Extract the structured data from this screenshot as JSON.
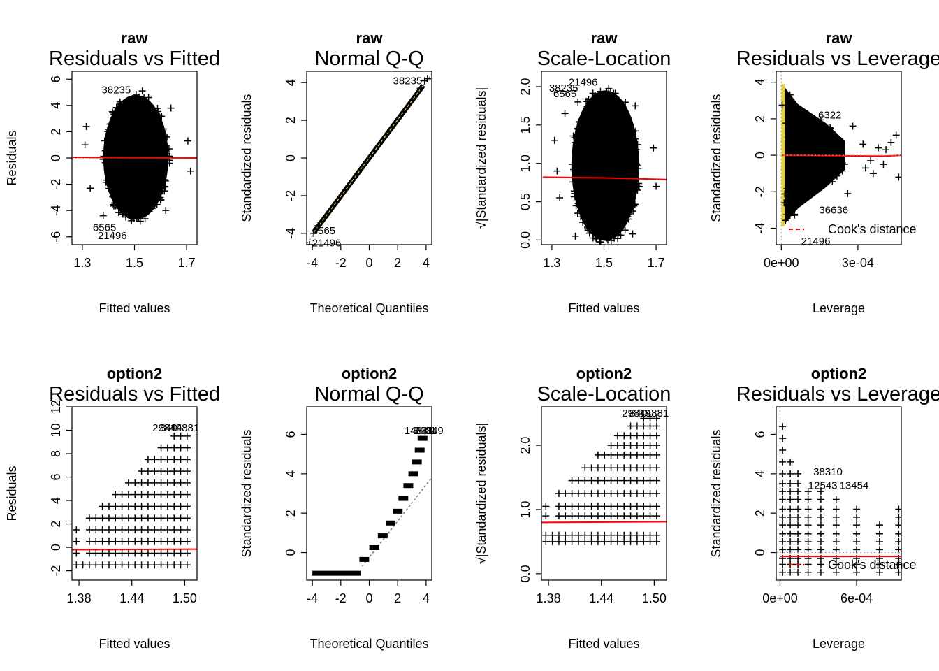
{
  "chart_data": [
    {
      "id": "p1",
      "type": "scatter",
      "dataset": "raw",
      "title": "Residuals vs Fitted",
      "xlabel": "Fitted values",
      "ylabel": "Residuals",
      "xlim": [
        1.26,
        1.74
      ],
      "ylim": [
        -6.6,
        6.6
      ],
      "xticks": [
        1.3,
        1.5,
        1.7
      ],
      "xtick_labels": [
        "1.3",
        "1.5",
        "1.7"
      ],
      "yticks": [
        -6,
        -4,
        -2,
        0,
        2,
        4,
        6
      ],
      "ytick_labels": [
        "-6",
        "-4",
        "-2",
        "0",
        "2",
        "4",
        "6"
      ],
      "cloud": {
        "shape": "ellipse",
        "cx": 1.505,
        "cy": 0.05,
        "rx": 0.125,
        "ry": 4.75
      },
      "points": [
        [
          1.31,
          1.0
        ],
        [
          1.315,
          2.4
        ],
        [
          1.33,
          -2.3
        ],
        [
          1.705,
          1.3
        ],
        [
          1.715,
          -1.0
        ],
        [
          1.64,
          3.8
        ],
        [
          1.38,
          -4.4
        ],
        [
          1.62,
          -4.0
        ],
        [
          1.53,
          5.1
        ]
      ],
      "labels": [
        {
          "text": "38235",
          "x": 1.43,
          "y": 5.2
        },
        {
          "text": "6565",
          "x": 1.385,
          "y": -5.3
        },
        {
          "text": "21496",
          "x": 1.415,
          "y": -5.9
        }
      ],
      "fit_line": [
        [
          1.265,
          0.05
        ],
        [
          1.5,
          0.02
        ],
        [
          1.74,
          0.0
        ]
      ],
      "zero_line": 0
    },
    {
      "id": "p2",
      "type": "scatter",
      "dataset": "raw",
      "title": "Normal Q-Q",
      "xlabel": "Theoretical Quantiles",
      "ylabel": "Standardized residuals",
      "xlim": [
        -4.4,
        4.4
      ],
      "ylim": [
        -4.6,
        4.6
      ],
      "xticks": [
        -4,
        -2,
        0,
        2,
        4
      ],
      "xtick_labels": [
        "-4",
        "-2",
        "0",
        "2",
        "4"
      ],
      "yticks": [
        -4,
        -2,
        0,
        2,
        4
      ],
      "ytick_labels": [
        "-4",
        "-2",
        "0",
        "2",
        "4"
      ],
      "qq_line": [
        [
          -4.4,
          -4.55
        ],
        [
          4.4,
          4.45
        ]
      ],
      "qq_points": [
        [
          -4.2,
          -4.6
        ],
        [
          -3.9,
          -4.0
        ],
        [
          -3.6,
          -3.6
        ],
        [
          3.6,
          3.7
        ],
        [
          3.9,
          4.1
        ],
        [
          4.1,
          4.2
        ]
      ],
      "labels": [
        {
          "text": "38235",
          "x": 2.7,
          "y": 4.1
        },
        {
          "text": "6565",
          "x": -3.2,
          "y": -3.85
        },
        {
          "text": "21496",
          "x": -3.0,
          "y": -4.5
        }
      ]
    },
    {
      "id": "p3",
      "type": "scatter",
      "dataset": "raw",
      "title": "Scale-Location",
      "xlabel": "Fitted values",
      "ylabel": "√|Standardized residuals|",
      "xlim": [
        1.26,
        1.74
      ],
      "ylim": [
        -0.06,
        2.2
      ],
      "xticks": [
        1.3,
        1.5,
        1.7
      ],
      "xtick_labels": [
        "1.3",
        "1.5",
        "1.7"
      ],
      "yticks": [
        0.0,
        0.5,
        1.0,
        1.5,
        2.0
      ],
      "ytick_labels": [
        "0.0",
        "0.5",
        "1.0",
        "1.5",
        "2.0"
      ],
      "cloud": {
        "shape": "ellipse",
        "cx": 1.505,
        "cy": 0.97,
        "rx": 0.13,
        "ry": 0.98
      },
      "points": [
        [
          1.31,
          1.3
        ],
        [
          1.32,
          0.9
        ],
        [
          1.33,
          0.55
        ],
        [
          1.7,
          0.7
        ],
        [
          1.69,
          1.2
        ],
        [
          1.62,
          1.75
        ],
        [
          1.4,
          1.8
        ],
        [
          1.39,
          0.05
        ],
        [
          1.61,
          0.08
        ],
        [
          1.35,
          1.65
        ]
      ],
      "labels": [
        {
          "text": "38235",
          "x": 1.345,
          "y": 1.98
        },
        {
          "text": "6565",
          "x": 1.35,
          "y": 1.91
        },
        {
          "text": "21496",
          "x": 1.42,
          "y": 2.06
        }
      ],
      "fit_line": [
        [
          1.265,
          0.82
        ],
        [
          1.5,
          0.81
        ],
        [
          1.74,
          0.79
        ]
      ]
    },
    {
      "id": "p4",
      "type": "scatter",
      "dataset": "raw",
      "title": "Residuals vs Leverage",
      "xlabel": "Leverage",
      "ylabel": "Standardized residuals",
      "xlim": [
        -2e-05,
        0.00047
      ],
      "ylim": [
        -4.9,
        4.6
      ],
      "xticks": [
        0,
        0.0003
      ],
      "xtick_labels": [
        "0e+00",
        "3e-04"
      ],
      "yticks": [
        -4,
        -2,
        0,
        2,
        4
      ],
      "ytick_labels": [
        "-4",
        "-2",
        "0",
        "2",
        "4"
      ],
      "cloud": {
        "shape": "leverage_fan",
        "x0": 3e-06,
        "x1": 0.00025,
        "top": 3.9,
        "bottom": -3.9
      },
      "points": [
        [
          0.00032,
          0.6
        ],
        [
          0.00035,
          -0.3
        ],
        [
          0.00038,
          0.4
        ],
        [
          0.0004,
          -0.5
        ],
        [
          0.00043,
          0.7
        ],
        [
          0.00045,
          1.1
        ],
        [
          0.00046,
          -1.2
        ],
        [
          0.00036,
          -1.0
        ],
        [
          0.00041,
          0.3
        ],
        [
          0.00033,
          -0.7
        ],
        [
          0.00028,
          1.6
        ],
        [
          0.00026,
          -2.1
        ]
      ],
      "labels": [
        {
          "text": "6322",
          "x": 0.00019,
          "y": 2.2
        },
        {
          "text": "36636",
          "x": 0.000205,
          "y": -3.0
        },
        {
          "text": "21496",
          "x": 0.000135,
          "y": -4.7
        }
      ],
      "fit_line": [
        [
          3e-06,
          0.0
        ],
        [
          0.0004,
          -0.05
        ],
        [
          0.00047,
          0.0
        ]
      ],
      "legend": "Cook's distance"
    },
    {
      "id": "p5",
      "type": "scatter",
      "dataset": "option2",
      "title": "Residuals vs Fitted",
      "xlabel": "Fitted values",
      "ylabel": "Residuals",
      "xlim": [
        1.372,
        1.514
      ],
      "ylim": [
        -2.8,
        12.0
      ],
      "xticks": [
        1.38,
        1.44,
        1.5
      ],
      "xtick_labels": [
        "1.38",
        "1.44",
        "1.50"
      ],
      "yticks": [
        -2,
        0,
        2,
        4,
        6,
        8,
        10,
        12
      ],
      "ytick_labels": [
        "-2",
        "0",
        "2",
        "4",
        "6",
        "8",
        "10",
        "12"
      ],
      "grid": {
        "x_start": 1.377,
        "x_step": 0.0074,
        "y_offsets": [
          -1.5,
          -0.5,
          0.5,
          1.5,
          2.5,
          3.5,
          4.5,
          5.5,
          6.5,
          7.5,
          8.5,
          9.5
        ]
      },
      "labels": [
        {
          "text": "29849",
          "x": 1.48,
          "y": 10.2
        },
        {
          "text": "8401",
          "x": 1.485,
          "y": 10.2
        },
        {
          "text": "14881",
          "x": 1.5,
          "y": 10.2
        }
      ],
      "fit_line": [
        [
          1.372,
          -0.2
        ],
        [
          1.514,
          -0.15
        ]
      ]
    },
    {
      "id": "p6",
      "type": "scatter",
      "dataset": "option2",
      "title": "Normal Q-Q",
      "xlabel": "Theoretical Quantiles",
      "ylabel": "Standardized residuals",
      "xlim": [
        -4.4,
        4.4
      ],
      "ylim": [
        -1.4,
        7.4
      ],
      "xticks": [
        -4,
        -2,
        0,
        2,
        4
      ],
      "xtick_labels": [
        "-4",
        "-2",
        "0",
        "2",
        "4"
      ],
      "yticks": [
        0,
        2,
        4,
        6
      ],
      "ytick_labels": [
        "0",
        "2",
        "4",
        "6"
      ],
      "qq_line": [
        [
          -0.5,
          -0.7
        ],
        [
          4.4,
          3.8
        ]
      ],
      "labels": [
        {
          "text": "14881",
          "x": 3.5,
          "y": 6.2
        },
        {
          "text": "8401",
          "x": 3.9,
          "y": 6.2
        },
        {
          "text": "29849",
          "x": 4.2,
          "y": 6.2
        }
      ]
    },
    {
      "id": "p7",
      "type": "scatter",
      "dataset": "option2",
      "title": "Scale-Location",
      "xlabel": "Fitted values",
      "ylabel": "√|Standardized residuals|",
      "xlim": [
        1.372,
        1.514
      ],
      "ylim": [
        -0.1,
        2.6
      ],
      "xticks": [
        1.38,
        1.44,
        1.5
      ],
      "xtick_labels": [
        "1.38",
        "1.44",
        "1.50"
      ],
      "yticks": [
        0.0,
        1.0,
        2.0
      ],
      "ytick_labels": [
        "0.0",
        "1.0",
        "2.0"
      ],
      "labels": [
        {
          "text": "29849",
          "x": 1.48,
          "y": 2.5
        },
        {
          "text": "8401",
          "x": 1.485,
          "y": 2.5
        },
        {
          "text": "14881",
          "x": 1.5,
          "y": 2.5
        }
      ],
      "fit_line": [
        [
          1.372,
          0.8
        ],
        [
          1.514,
          0.81
        ]
      ]
    },
    {
      "id": "p8",
      "type": "scatter",
      "dataset": "option2",
      "title": "Residuals vs Leverage",
      "xlabel": "Leverage",
      "ylabel": "Standardized residuals",
      "xlim": [
        -3e-05,
        0.00095
      ],
      "ylim": [
        -1.4,
        7.4
      ],
      "xticks": [
        0,
        0.0006
      ],
      "xtick_labels": [
        "0e+00",
        "6e-04"
      ],
      "yticks": [
        0,
        2,
        4,
        6
      ],
      "ytick_labels": [
        "0",
        "2",
        "4",
        "6"
      ],
      "labels": [
        {
          "text": "38310",
          "x": 0.000375,
          "y": 4.1
        },
        {
          "text": "12543",
          "x": 0.000335,
          "y": 3.4
        },
        {
          "text": "13454",
          "x": 0.00058,
          "y": 3.4
        }
      ],
      "fit_line": [
        [
          3e-06,
          -0.2
        ],
        [
          0.00095,
          -0.2
        ]
      ],
      "legend": "Cook's distance"
    }
  ]
}
